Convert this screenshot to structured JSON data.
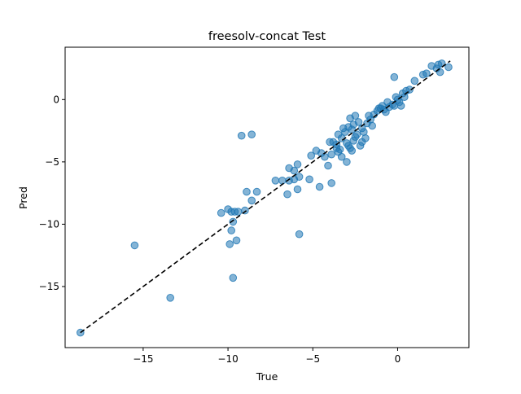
{
  "chart_data": {
    "type": "scatter",
    "title": "freesolv-concat Test",
    "xlabel": "True",
    "ylabel": "Pred",
    "xlim": [
      -19.6,
      4.2
    ],
    "ylim": [
      -19.9,
      4.2
    ],
    "xticks": [
      -15,
      -10,
      -5,
      0
    ],
    "yticks": [
      -15,
      -10,
      -5,
      0
    ],
    "x_tick_labels": [
      "−15",
      "−10",
      "−5",
      "0"
    ],
    "y_tick_labels": [
      "−15",
      "−10",
      "−5",
      "0"
    ],
    "grid": false,
    "reference_line": {
      "style": "dashed",
      "color": "#000000",
      "from": [
        -18.7,
        -18.7
      ],
      "to": [
        3.1,
        3.1
      ]
    },
    "point_color": "#1f77b4",
    "points": [
      [
        -18.7,
        -18.7
      ],
      [
        -15.5,
        -11.7
      ],
      [
        -13.4,
        -15.9
      ],
      [
        -10.4,
        -9.1
      ],
      [
        -10.0,
        -8.8
      ],
      [
        -9.8,
        -9.0
      ],
      [
        -9.6,
        -9.0
      ],
      [
        -9.4,
        -9.0
      ],
      [
        -9.7,
        -9.8
      ],
      [
        -9.8,
        -10.5
      ],
      [
        -9.9,
        -11.6
      ],
      [
        -9.5,
        -11.3
      ],
      [
        -9.7,
        -14.3
      ],
      [
        -9.2,
        -2.9
      ],
      [
        -8.6,
        -2.8
      ],
      [
        -9.0,
        -8.9
      ],
      [
        -8.9,
        -7.4
      ],
      [
        -8.3,
        -7.4
      ],
      [
        -8.6,
        -8.1
      ],
      [
        -7.2,
        -6.5
      ],
      [
        -6.8,
        -6.5
      ],
      [
        -6.4,
        -6.5
      ],
      [
        -6.1,
        -6.4
      ],
      [
        -6.5,
        -7.6
      ],
      [
        -6.4,
        -5.5
      ],
      [
        -6.1,
        -5.7
      ],
      [
        -5.8,
        -6.2
      ],
      [
        -5.9,
        -7.2
      ],
      [
        -5.2,
        -6.4
      ],
      [
        -4.6,
        -7.0
      ],
      [
        -3.9,
        -6.7
      ],
      [
        -5.8,
        -10.8
      ],
      [
        -5.9,
        -5.2
      ],
      [
        -5.1,
        -4.5
      ],
      [
        -4.8,
        -4.1
      ],
      [
        -4.5,
        -4.3
      ],
      [
        -4.3,
        -4.6
      ],
      [
        -4.1,
        -5.3
      ],
      [
        -4.0,
        -3.4
      ],
      [
        -3.8,
        -3.4
      ],
      [
        -3.6,
        -3.6
      ],
      [
        -3.6,
        -3.9
      ],
      [
        -3.4,
        -4.0
      ],
      [
        -3.3,
        -4.6
      ],
      [
        -3.0,
        -5.0
      ],
      [
        -3.9,
        -4.4
      ],
      [
        -3.5,
        -4.2
      ],
      [
        -3.5,
        -2.8
      ],
      [
        -3.3,
        -3.1
      ],
      [
        -3.1,
        -2.6
      ],
      [
        -3.0,
        -3.5
      ],
      [
        -2.9,
        -3.7
      ],
      [
        -2.8,
        -3.9
      ],
      [
        -2.7,
        -4.1
      ],
      [
        -2.6,
        -3.3
      ],
      [
        -2.5,
        -3.0
      ],
      [
        -2.4,
        -2.8
      ],
      [
        -2.9,
        -2.2
      ],
      [
        -2.7,
        -2.4
      ],
      [
        -2.8,
        -1.5
      ],
      [
        -2.5,
        -1.3
      ],
      [
        -2.3,
        -1.8
      ],
      [
        -2.1,
        -2.3
      ],
      [
        -2.0,
        -2.6
      ],
      [
        -1.9,
        -3.1
      ],
      [
        -2.1,
        -3.4
      ],
      [
        -2.2,
        -3.7
      ],
      [
        -1.8,
        -1.9
      ],
      [
        -1.6,
        -1.6
      ],
      [
        -1.5,
        -2.1
      ],
      [
        -1.7,
        -1.3
      ],
      [
        -1.4,
        -1.2
      ],
      [
        -1.2,
        -0.9
      ],
      [
        -1.0,
        -0.7
      ],
      [
        -0.8,
        -0.8
      ],
      [
        -0.7,
        -1.0
      ],
      [
        -0.5,
        -0.6
      ],
      [
        -0.3,
        -0.4
      ],
      [
        -0.2,
        -0.5
      ],
      [
        -0.1,
        0.2
      ],
      [
        0.1,
        -0.2
      ],
      [
        0.2,
        -0.5
      ],
      [
        0.3,
        0.5
      ],
      [
        0.5,
        0.7
      ],
      [
        0.7,
        0.8
      ],
      [
        0.4,
        0.2
      ],
      [
        0.0,
        0.0
      ],
      [
        -0.2,
        1.8
      ],
      [
        1.0,
        1.5
      ],
      [
        1.5,
        2.0
      ],
      [
        1.7,
        2.1
      ],
      [
        2.0,
        2.7
      ],
      [
        2.4,
        2.8
      ],
      [
        2.6,
        2.9
      ],
      [
        2.3,
        2.5
      ],
      [
        2.5,
        2.2
      ],
      [
        3.0,
        2.6
      ],
      [
        -1.1,
        -0.7
      ],
      [
        -0.9,
        -0.5
      ],
      [
        -0.6,
        -0.2
      ],
      [
        -2.6,
        -2.0
      ],
      [
        -3.2,
        -2.3
      ]
    ]
  }
}
